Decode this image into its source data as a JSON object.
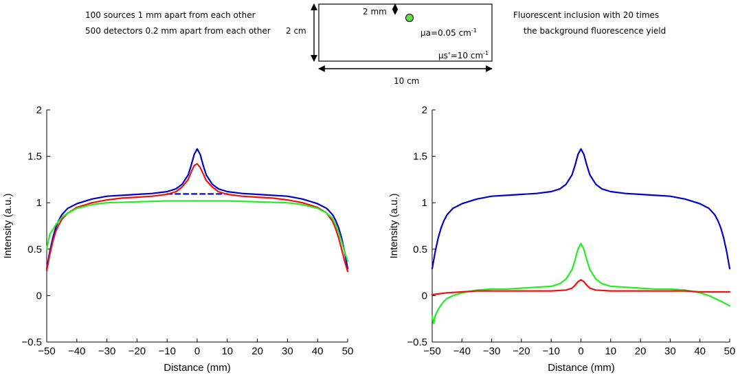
{
  "diagram": {
    "left_text": [
      "100 sources 1 mm apart from each other",
      "500 detectors 0.2 mm apart from each other"
    ],
    "right_text": [
      "Fluorescent inclusion with 20 times",
      "the background fluorescence yield"
    ],
    "height_label": "2 cm",
    "depth_label": "2 mm",
    "width_label": "10 cm",
    "mua_label": "μa=0.05 cm",
    "mua_exp": "-1",
    "mus_label": "μs’=10 cm",
    "mus_exp": "-1",
    "inclusion_color": "#66dd44"
  },
  "chart_data": [
    {
      "type": "line",
      "xlabel": "Distance (mm)",
      "ylabel": "Intensity (a.u.)",
      "xlim": [
        -50,
        50
      ],
      "ylim": [
        -0.5,
        2
      ],
      "xticks": [
        -50,
        -40,
        -30,
        -20,
        -10,
        0,
        10,
        20,
        30,
        40,
        50
      ],
      "yticks": [
        -0.5,
        0,
        0.5,
        1,
        1.5,
        2
      ],
      "ytick_labels": [
        "−0.5",
        "0",
        "0.5",
        "1",
        "1.5",
        "2"
      ],
      "series": [
        {
          "color": "#0000cc",
          "style": "solid",
          "width": 2.2,
          "x": [
            -50,
            -49,
            -48,
            -47,
            -46,
            -45,
            -43,
            -40,
            -35,
            -30,
            -25,
            -20,
            -15,
            -10,
            -7,
            -5,
            -3,
            -2,
            -1,
            0,
            1,
            2,
            3,
            5,
            7,
            10,
            15,
            20,
            25,
            30,
            35,
            40,
            43,
            45,
            46,
            47,
            48,
            49,
            50
          ],
          "y": [
            0.29,
            0.47,
            0.62,
            0.73,
            0.81,
            0.87,
            0.94,
            0.99,
            1.04,
            1.07,
            1.08,
            1.09,
            1.1,
            1.12,
            1.15,
            1.2,
            1.3,
            1.4,
            1.52,
            1.58,
            1.52,
            1.4,
            1.3,
            1.2,
            1.15,
            1.12,
            1.1,
            1.09,
            1.08,
            1.07,
            1.04,
            0.99,
            0.94,
            0.87,
            0.81,
            0.73,
            0.62,
            0.47,
            0.29
          ]
        },
        {
          "color": "#0000cc",
          "style": "dashed",
          "width": 2.2,
          "x": [
            -10,
            -5,
            0,
            5,
            10
          ],
          "y": [
            1.095,
            1.095,
            1.095,
            1.095,
            1.095
          ]
        },
        {
          "color": "#ee1111",
          "style": "solid",
          "width": 2.2,
          "x": [
            -50,
            -49,
            -48,
            -47,
            -46,
            -45,
            -43,
            -40,
            -35,
            -30,
            -25,
            -20,
            -15,
            -10,
            -7,
            -5,
            -3,
            -2,
            -1,
            0,
            1,
            2,
            3,
            5,
            7,
            10,
            15,
            20,
            25,
            30,
            35,
            40,
            43,
            45,
            46,
            47,
            48,
            49,
            50
          ],
          "y": [
            0.27,
            0.44,
            0.58,
            0.69,
            0.76,
            0.82,
            0.89,
            0.95,
            1.0,
            1.03,
            1.05,
            1.06,
            1.07,
            1.09,
            1.12,
            1.17,
            1.25,
            1.33,
            1.4,
            1.42,
            1.38,
            1.31,
            1.24,
            1.17,
            1.12,
            1.09,
            1.07,
            1.06,
            1.05,
            1.03,
            1.0,
            0.95,
            0.89,
            0.8,
            0.72,
            0.62,
            0.5,
            0.37,
            0.26
          ]
        },
        {
          "color": "#22ee22",
          "style": "solid",
          "width": 2.2,
          "x": [
            -50,
            -49,
            -48,
            -47,
            -46,
            -45,
            -43,
            -40,
            -35,
            -30,
            -20,
            -10,
            0,
            10,
            20,
            30,
            35,
            40,
            43,
            45,
            46,
            47,
            48,
            49,
            50
          ],
          "y": [
            0.5,
            0.66,
            0.71,
            0.76,
            0.8,
            0.84,
            0.89,
            0.94,
            0.98,
            1.0,
            1.01,
            1.02,
            1.02,
            1.02,
            1.01,
            1.0,
            0.98,
            0.94,
            0.89,
            0.83,
            0.76,
            0.68,
            0.58,
            0.47,
            0.37
          ]
        }
      ]
    },
    {
      "type": "line",
      "xlabel": "Distance (mm)",
      "ylabel": "Intensity (a.u.)",
      "xlim": [
        -50,
        50
      ],
      "ylim": [
        -0.5,
        2
      ],
      "xticks": [
        -50,
        -40,
        -30,
        -20,
        -10,
        0,
        10,
        20,
        30,
        40,
        50
      ],
      "yticks": [
        -0.5,
        0,
        0.5,
        1,
        1.5,
        2
      ],
      "ytick_labels": [
        "−0.5",
        "0",
        "0.5",
        "1",
        "1.5",
        "2"
      ],
      "series": [
        {
          "color": "#0000cc",
          "style": "solid",
          "width": 2.2,
          "x": [
            -50,
            -49,
            -48,
            -47,
            -46,
            -45,
            -43,
            -40,
            -35,
            -30,
            -25,
            -20,
            -15,
            -10,
            -7,
            -5,
            -3,
            -2,
            -1,
            0,
            1,
            2,
            3,
            5,
            7,
            10,
            15,
            20,
            25,
            30,
            35,
            40,
            43,
            45,
            46,
            47,
            48,
            49,
            50
          ],
          "y": [
            0.29,
            0.47,
            0.62,
            0.73,
            0.81,
            0.87,
            0.94,
            0.99,
            1.04,
            1.07,
            1.08,
            1.09,
            1.1,
            1.12,
            1.15,
            1.2,
            1.3,
            1.4,
            1.52,
            1.58,
            1.52,
            1.4,
            1.3,
            1.2,
            1.15,
            1.12,
            1.1,
            1.09,
            1.08,
            1.07,
            1.04,
            0.99,
            0.94,
            0.87,
            0.81,
            0.73,
            0.62,
            0.47,
            0.29
          ]
        },
        {
          "color": "#22ee22",
          "style": "solid",
          "width": 2.2,
          "x": [
            -50,
            -49.5,
            -49,
            -48,
            -47,
            -46,
            -45,
            -43,
            -40,
            -35,
            -30,
            -25,
            -20,
            -15,
            -10,
            -7,
            -5,
            -3,
            -2,
            -1,
            0,
            1,
            2,
            3,
            5,
            7,
            10,
            15,
            20,
            25,
            30,
            35,
            40,
            43,
            45,
            47,
            50
          ],
          "y": [
            -0.22,
            -0.3,
            -0.22,
            -0.15,
            -0.1,
            -0.06,
            -0.03,
            0.0,
            0.03,
            0.06,
            0.07,
            0.07,
            0.08,
            0.09,
            0.1,
            0.13,
            0.18,
            0.28,
            0.38,
            0.5,
            0.56,
            0.5,
            0.38,
            0.28,
            0.18,
            0.13,
            0.1,
            0.09,
            0.08,
            0.07,
            0.07,
            0.06,
            0.03,
            0.0,
            -0.03,
            -0.06,
            -0.11
          ]
        },
        {
          "color": "#ee1111",
          "style": "solid",
          "width": 2.2,
          "x": [
            -50,
            -45,
            -40,
            -35,
            -30,
            -25,
            -20,
            -15,
            -10,
            -5,
            -3,
            -2,
            -1,
            0,
            1,
            2,
            3,
            5,
            10,
            15,
            20,
            25,
            30,
            35,
            40,
            45,
            50
          ],
          "y": [
            0.01,
            0.03,
            0.04,
            0.05,
            0.05,
            0.05,
            0.05,
            0.05,
            0.05,
            0.06,
            0.08,
            0.11,
            0.15,
            0.17,
            0.15,
            0.11,
            0.08,
            0.06,
            0.05,
            0.05,
            0.05,
            0.05,
            0.05,
            0.05,
            0.04,
            0.04,
            0.04
          ]
        }
      ]
    }
  ]
}
